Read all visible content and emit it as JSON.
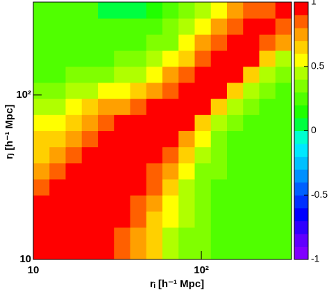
{
  "chart_data": {
    "type": "heatmap",
    "x_label": "rᵢ [h⁻¹ Mpc]",
    "y_label": "rⱼ [h⁻¹ Mpc]",
    "xlog": true,
    "ylog": true,
    "xlim": [
      10,
      344
    ],
    "ylim": [
      10,
      367
    ],
    "xticks": [
      10,
      {
        "value": 100,
        "label": "10²"
      }
    ],
    "yticks": [
      10,
      {
        "value": 100,
        "label": "10²"
      }
    ],
    "zlim": [
      -1,
      1
    ],
    "zticks": [
      -1,
      -0.5,
      0,
      0.5,
      1
    ],
    "colormap": [
      "#8000ff",
      "#6000ff",
      "#3000ff",
      "#0000ff",
      "#0030ff",
      "#0060ff",
      "#0090ff",
      "#00c0ff",
      "#00e8ff",
      "#00ffd0",
      "#00ff40",
      "#20ff00",
      "#50ff00",
      "#80ff00",
      "#b0ff00",
      "#ffff00",
      "#ffd000",
      "#ffa000",
      "#ff6000",
      "#ff0000"
    ],
    "z": [
      [
        1,
        0.98,
        0.96,
        0.93,
        0.9,
        0.85,
        0.7,
        0.6,
        0.45,
        0.35,
        0.3,
        0.25,
        0.2,
        0.2,
        0.2,
        0.2
      ],
      [
        0.98,
        1,
        0.97,
        0.95,
        0.92,
        0.88,
        0.75,
        0.62,
        0.48,
        0.38,
        0.3,
        0.25,
        0.2,
        0.2,
        0.2,
        0.2
      ],
      [
        0.96,
        0.97,
        1,
        0.97,
        0.95,
        0.9,
        0.8,
        0.65,
        0.5,
        0.4,
        0.3,
        0.25,
        0.2,
        0.2,
        0.2,
        0.2
      ],
      [
        0.9,
        0.95,
        0.97,
        1,
        0.97,
        0.93,
        0.85,
        0.7,
        0.55,
        0.4,
        0.3,
        0.25,
        0.22,
        0.2,
        0.2,
        0.2
      ],
      [
        0.85,
        0.9,
        0.95,
        0.97,
        1,
        0.97,
        0.9,
        0.8,
        0.6,
        0.45,
        0.35,
        0.28,
        0.22,
        0.2,
        0.2,
        0.2
      ],
      [
        0.75,
        0.85,
        0.9,
        0.93,
        0.97,
        1,
        0.96,
        0.88,
        0.7,
        0.5,
        0.38,
        0.3,
        0.25,
        0.22,
        0.2,
        0.2
      ],
      [
        0.65,
        0.75,
        0.82,
        0.9,
        0.95,
        0.96,
        1,
        0.95,
        0.8,
        0.6,
        0.42,
        0.32,
        0.25,
        0.22,
        0.2,
        0.2
      ],
      [
        0.6,
        0.65,
        0.75,
        0.85,
        0.9,
        0.93,
        0.95,
        1,
        0.92,
        0.7,
        0.5,
        0.35,
        0.28,
        0.22,
        0.2,
        0.2
      ],
      [
        0.5,
        0.55,
        0.65,
        0.75,
        0.82,
        0.9,
        0.93,
        0.95,
        1,
        0.9,
        0.65,
        0.45,
        0.3,
        0.25,
        0.2,
        0.2
      ],
      [
        0.4,
        0.45,
        0.55,
        0.6,
        0.7,
        0.75,
        0.82,
        0.9,
        0.93,
        1,
        0.9,
        0.65,
        0.45,
        0.3,
        0.25,
        0.2
      ],
      [
        0.3,
        0.35,
        0.4,
        0.45,
        0.5,
        0.55,
        0.62,
        0.7,
        0.85,
        0.92,
        1,
        0.9,
        0.65,
        0.45,
        0.3,
        0.25
      ],
      [
        0.25,
        0.28,
        0.3,
        0.32,
        0.35,
        0.4,
        0.45,
        0.55,
        0.7,
        0.85,
        0.93,
        1,
        0.9,
        0.65,
        0.45,
        0.3
      ],
      [
        0.2,
        0.2,
        0.22,
        0.25,
        0.28,
        0.3,
        0.35,
        0.42,
        0.5,
        0.65,
        0.85,
        0.92,
        1,
        0.9,
        0.65,
        0.45
      ],
      [
        0.2,
        0.2,
        0.2,
        0.22,
        0.22,
        0.25,
        0.28,
        0.3,
        0.38,
        0.5,
        0.7,
        0.85,
        0.92,
        1,
        0.85,
        0.7
      ],
      [
        0.2,
        0.2,
        0.2,
        0.2,
        0.2,
        0.2,
        0.22,
        0.25,
        0.3,
        0.4,
        0.5,
        0.7,
        0.85,
        0.92,
        1,
        0.85
      ],
      [
        0.2,
        0.2,
        0.2,
        0.2,
        0.05,
        0.05,
        0.05,
        0.15,
        0.22,
        0.3,
        0.4,
        0.5,
        0.7,
        0.85,
        0.85,
        1
      ]
    ]
  }
}
